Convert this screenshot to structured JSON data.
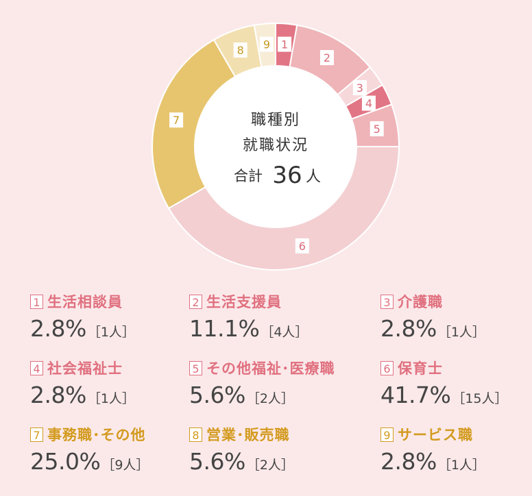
{
  "center": {
    "line1": "職種別",
    "line2": "就職状況",
    "total_label": "合計",
    "total_value": "36",
    "total_unit": "人"
  },
  "chart_data": {
    "type": "pie",
    "title": "職種別就職状況",
    "total": 36,
    "categories": [
      "生活相談員",
      "生活支援員",
      "介護職",
      "社会福祉士",
      "その他福祉・医療職",
      "保育士",
      "事務職・その他",
      "営業・販売職",
      "サービス職"
    ],
    "values": [
      1,
      4,
      1,
      1,
      2,
      15,
      9,
      2,
      1
    ],
    "percentages": [
      2.8,
      11.1,
      2.8,
      2.8,
      5.6,
      41.7,
      25.0,
      5.6,
      2.8
    ],
    "colors": [
      "#e27585",
      "#efb4b8",
      "#f7d8da",
      "#e27585",
      "#efb4b8",
      "#f3cfd1",
      "#e7c56f",
      "#f2dfb0",
      "#f7ecd6"
    ]
  },
  "legend": [
    {
      "num": "1",
      "label": "生活相談員",
      "pct": "2.8%",
      "count": "［1人］",
      "color_class": "c-pink"
    },
    {
      "num": "2",
      "label": "生活支援員",
      "pct": "11.1%",
      "count": "［4人］",
      "color_class": "c-pink"
    },
    {
      "num": "3",
      "label": "介護職",
      "pct": "2.8%",
      "count": "［1人］",
      "color_class": "c-pink"
    },
    {
      "num": "4",
      "label": "社会福祉士",
      "pct": "2.8%",
      "count": "［1人］",
      "color_class": "c-pink"
    },
    {
      "num": "5",
      "label": "その他福祉･医療職",
      "pct": "5.6%",
      "count": "［2人］",
      "color_class": "c-pink"
    },
    {
      "num": "6",
      "label": "保育士",
      "pct": "41.7%",
      "count": "［15人］",
      "color_class": "c-pink"
    },
    {
      "num": "7",
      "label": "事務職･その他",
      "pct": "25.0%",
      "count": "［9人］",
      "color_class": "c-gold"
    },
    {
      "num": "8",
      "label": "営業･販売職",
      "pct": "5.6%",
      "count": "［2人］",
      "color_class": "c-gold"
    },
    {
      "num": "9",
      "label": "サービス職",
      "pct": "2.8%",
      "count": "［1人］",
      "color_class": "c-gold"
    }
  ]
}
